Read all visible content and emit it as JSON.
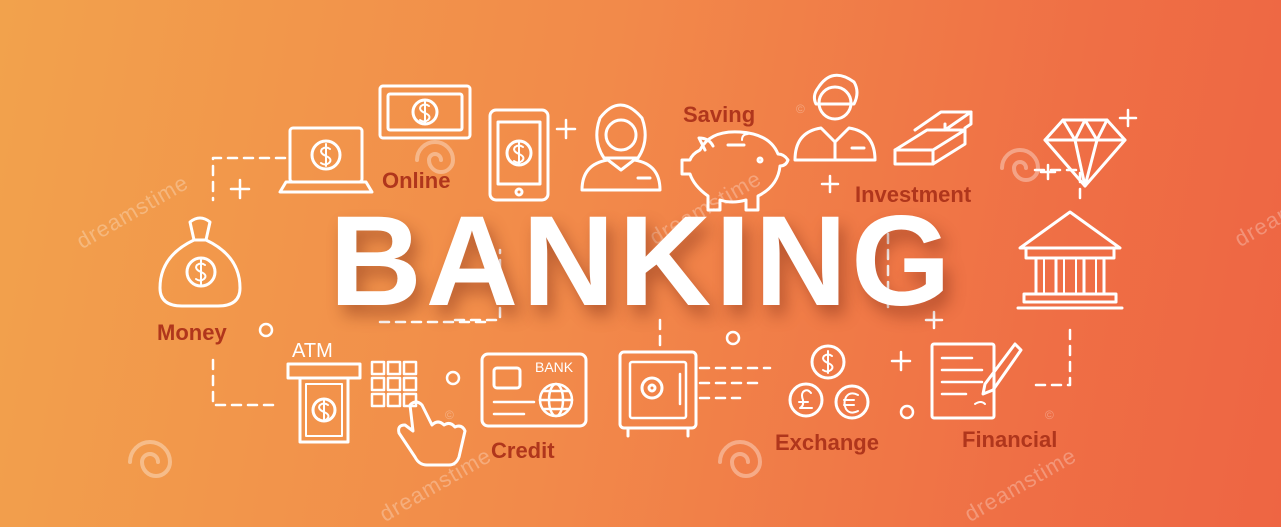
{
  "banner": {
    "title": "BANKING",
    "labels": {
      "saving": "Saving",
      "online": "Online",
      "investment": "Investment",
      "money": "Money",
      "credit": "Credit",
      "exchange": "Exchange",
      "financial": "Financial"
    },
    "atm_label": "ATM",
    "card_label": "BANK",
    "watermark": "dreamstime",
    "watermark_mark": "©",
    "colors": {
      "gradient_start": "#f2a24c",
      "gradient_end": "#ee6543",
      "label": "#b0361c",
      "line_art": "#ffffff"
    },
    "icons": [
      "money-bag-icon",
      "laptop-dollar-icon",
      "banknote-icon",
      "smartphone-dollar-icon",
      "woman-avatar-icon",
      "piggy-bank-icon",
      "businessman-icon",
      "gold-bars-icon",
      "diamond-icon",
      "bank-building-icon",
      "atm-cash-icon",
      "keypad-icon",
      "hand-pointer-icon",
      "credit-card-icon",
      "globe-icon",
      "safe-icon",
      "currency-coins-icon",
      "document-pen-icon"
    ]
  }
}
